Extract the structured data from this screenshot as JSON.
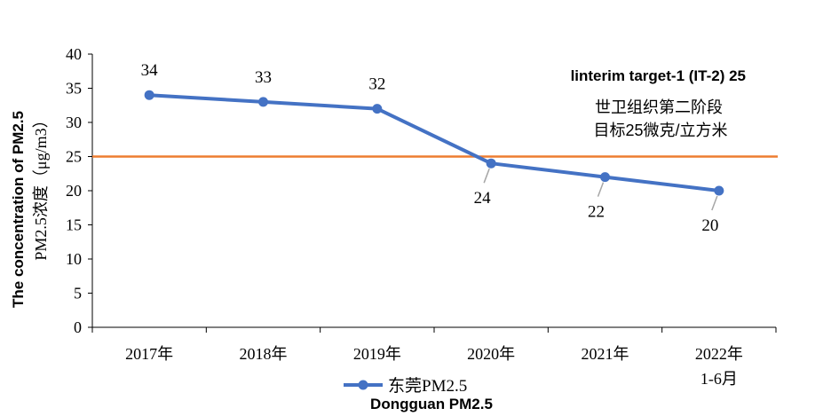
{
  "chart_data": {
    "type": "line",
    "categories": [
      [
        "2017年"
      ],
      [
        "2018年"
      ],
      [
        "2019年"
      ],
      [
        "2020年"
      ],
      [
        "2021年"
      ],
      [
        "2022年",
        "1-6月"
      ]
    ],
    "series": [
      {
        "name": "东莞PM2.5",
        "values": [
          34,
          33,
          32,
          24,
          22,
          20
        ],
        "color": "#4472C4"
      }
    ],
    "data_labels": [
      "34",
      "33",
      "32",
      "24",
      "22",
      "20"
    ],
    "ylabel_lines": [
      "The concentration of PM2.5",
      "PM2.5浓度（μg/m3）"
    ],
    "ylim": [
      0,
      40
    ],
    "yticks": [
      0,
      5,
      10,
      15,
      20,
      25,
      30,
      35,
      40
    ],
    "reference_line": {
      "value": 25,
      "color": "#ED7D31",
      "labels": [
        "linterim target-1 (IT-2) 25",
        "世卫组织第二阶段",
        "目标25微克/立方米"
      ]
    },
    "legend": {
      "position": "bottom",
      "label": "东莞PM2.5",
      "sublabel": "Dongguan PM2.5"
    },
    "grid": false
  }
}
